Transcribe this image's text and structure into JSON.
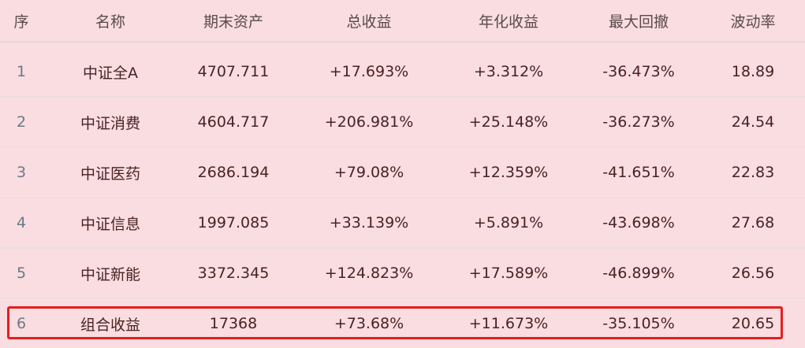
{
  "table": {
    "headers": [
      "序",
      "名称",
      "期末资产",
      "总收益",
      "年化收益",
      "最大回撤",
      "波动率"
    ],
    "rows": [
      [
        "1",
        "中证全A",
        "4707.711",
        "+17.693%",
        "+3.312%",
        "-36.473%",
        "18.89"
      ],
      [
        "2",
        "中证消费",
        "4604.717",
        "+206.981%",
        "+25.148%",
        "-36.273%",
        "24.54"
      ],
      [
        "3",
        "中证医药",
        "2686.194",
        "+79.08%",
        "+12.359%",
        "-41.651%",
        "22.83"
      ],
      [
        "4",
        "中证信息",
        "1997.085",
        "+33.139%",
        "+5.891%",
        "-43.698%",
        "27.68"
      ],
      [
        "5",
        "中证新能",
        "3372.345",
        "+124.823%",
        "+17.589%",
        "-46.899%",
        "26.56"
      ],
      [
        "6",
        "组合收益",
        "17368",
        "+73.68%",
        "+11.673%",
        "-35.105%",
        "20.65"
      ]
    ]
  },
  "colors": {
    "background": "#f9dde0",
    "highlight_border": "#e51e1e"
  }
}
